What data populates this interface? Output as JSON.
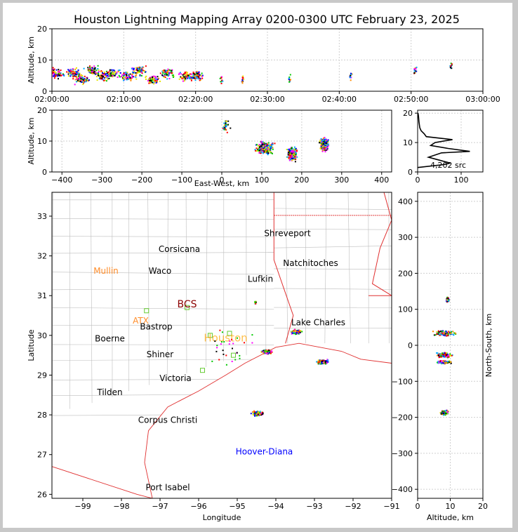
{
  "chart_data": [
    {
      "panel": "altitude-time",
      "type": "scatter",
      "title": "Houston Lightning Mapping Array 0200-0300 UTC February 23, 2025",
      "xlabel": "",
      "ylabel": "Altitude, km",
      "xlim": [
        "02:00:00",
        "03:00:00"
      ],
      "ylim": [
        0,
        20
      ],
      "x_ticks": [
        "02:00:00",
        "02:10:00",
        "02:20:00",
        "02:30:00",
        "02:40:00",
        "02:50:00",
        "03:00:00"
      ],
      "y_ticks": [
        0,
        10,
        20
      ],
      "grid": true,
      "clusters": [
        {
          "x": "02:00:30",
          "y": 6
        },
        {
          "x": "02:03:00",
          "y": 6
        },
        {
          "x": "02:04:00",
          "y": 4
        },
        {
          "x": "02:05:30",
          "y": 7
        },
        {
          "x": "02:07:00",
          "y": 5
        },
        {
          "x": "02:08:30",
          "y": 6
        },
        {
          "x": "02:10:30",
          "y": 5
        },
        {
          "x": "02:12:00",
          "y": 7
        },
        {
          "x": "02:14:00",
          "y": 4
        },
        {
          "x": "02:16:00",
          "y": 6
        },
        {
          "x": "02:18:30",
          "y": 5
        },
        {
          "x": "02:20:00",
          "y": 5
        },
        {
          "x": "02:23:30",
          "y": 4
        },
        {
          "x": "02:26:30",
          "y": 4
        },
        {
          "x": "02:33:00",
          "y": 4
        },
        {
          "x": "02:41:30",
          "y": 5
        },
        {
          "x": "02:50:30",
          "y": 7
        },
        {
          "x": "02:55:30",
          "y": 8
        }
      ]
    },
    {
      "panel": "altitude-east-west",
      "type": "scatter",
      "xlabel": "East-West, km",
      "ylabel": "Altitude, km",
      "xlim": [
        -425,
        425
      ],
      "ylim": [
        0,
        20
      ],
      "x_ticks": [
        -400,
        -300,
        -200,
        -100,
        0,
        100,
        200,
        300,
        400
      ],
      "y_ticks": [
        0,
        10,
        20
      ],
      "grid": true,
      "clusters": [
        {
          "x": 105,
          "y": 8,
          "spread": 18
        },
        {
          "x": 175,
          "y": 6,
          "spread": 10
        },
        {
          "x": 255,
          "y": 9,
          "spread": 10
        },
        {
          "x": 10,
          "y": 15,
          "spread": 8
        }
      ]
    },
    {
      "panel": "altitude-histogram",
      "type": "line",
      "xlabel": "",
      "ylabel": "",
      "xlim": [
        0,
        150
      ],
      "ylim": [
        0,
        21
      ],
      "x_ticks": [
        0,
        100
      ],
      "y_ticks": [
        0,
        10,
        20
      ],
      "annotation": "4,202 src",
      "x": [
        0,
        60,
        75,
        50,
        25,
        55,
        120,
        70,
        30,
        40,
        80,
        20,
        15,
        8,
        5,
        3,
        2,
        1
      ],
      "y": [
        1.5,
        2.5,
        3,
        4,
        5,
        6.5,
        7,
        8,
        9,
        10,
        11,
        12,
        13,
        14,
        15,
        17,
        19,
        20
      ]
    },
    {
      "panel": "plan-view-map",
      "type": "scatter",
      "xlabel": "Longitude",
      "ylabel": "Latitude",
      "xlim": [
        -99.8,
        -91
      ],
      "ylim": [
        25.9,
        33.6
      ],
      "x_ticks": [
        -99,
        -98,
        -97,
        -96,
        -95,
        -94,
        -93,
        -92,
        -91
      ],
      "y_ticks": [
        26,
        27,
        28,
        29,
        30,
        31,
        32,
        33
      ],
      "cities": [
        {
          "name": "Shreveport",
          "lon": -93.7,
          "lat": 32.5,
          "color": "#000000"
        },
        {
          "name": "Corsicana",
          "lon": -96.5,
          "lat": 32.1,
          "color": "#000000"
        },
        {
          "name": "Natchitoches",
          "lon": -93.1,
          "lat": 31.75,
          "color": "#000000"
        },
        {
          "name": "Mullin",
          "lon": -98.4,
          "lat": 31.55,
          "color": "#ff8c28"
        },
        {
          "name": "Waco",
          "lon": -97.0,
          "lat": 31.55,
          "color": "#000000"
        },
        {
          "name": "Lufkin",
          "lon": -94.4,
          "lat": 31.35,
          "color": "#000000"
        },
        {
          "name": "BCS",
          "lon": -96.3,
          "lat": 30.7,
          "color": "#8b0000"
        },
        {
          "name": "ATX",
          "lon": -97.5,
          "lat": 30.3,
          "color": "#ff8c28"
        },
        {
          "name": "Bastrop",
          "lon": -97.1,
          "lat": 30.15,
          "color": "#000000"
        },
        {
          "name": "Lake Charles",
          "lon": -92.9,
          "lat": 30.25,
          "color": "#000000"
        },
        {
          "name": "Boerne",
          "lon": -98.3,
          "lat": 29.85,
          "color": "#000000"
        },
        {
          "name": "Houston",
          "lon": -95.3,
          "lat": 29.85,
          "color": "#ffa500"
        },
        {
          "name": "Shiner",
          "lon": -97.0,
          "lat": 29.45,
          "color": "#000000"
        },
        {
          "name": "Victoria",
          "lon": -96.6,
          "lat": 28.85,
          "color": "#000000"
        },
        {
          "name": "Tilden",
          "lon": -98.3,
          "lat": 28.5,
          "color": "#000000"
        },
        {
          "name": "Corpus Christi",
          "lon": -96.8,
          "lat": 27.8,
          "color": "#000000"
        },
        {
          "name": "Hoover-Diana",
          "lon": -94.3,
          "lat": 27.0,
          "color": "#0000ff"
        },
        {
          "name": "Port Isabel",
          "lon": -96.8,
          "lat": 26.1,
          "color": "#000000"
        }
      ],
      "clusters": [
        {
          "lon": -93.5,
          "lat": 30.1
        },
        {
          "lon": -94.25,
          "lat": 29.6
        },
        {
          "lon": -92.8,
          "lat": 29.35
        },
        {
          "lon": -94.5,
          "lat": 28.05
        },
        {
          "lon": -94.55,
          "lat": 30.85
        }
      ]
    },
    {
      "panel": "north-south-altitude",
      "type": "scatter",
      "xlabel": "Altitude, km",
      "ylabel": "North-South, km",
      "xlim": [
        0,
        20
      ],
      "ylim": [
        -425,
        425
      ],
      "x_ticks": [
        0,
        10,
        20
      ],
      "y_ticks": [
        -400,
        -300,
        -200,
        -100,
        0,
        100,
        200,
        300,
        400
      ],
      "grid": true,
      "clusters": [
        {
          "x": 8,
          "y": 35,
          "spread_x": 8,
          "spread_y": 10
        },
        {
          "x": 8,
          "y": -25,
          "spread_x": 5,
          "spread_y": 10
        },
        {
          "x": 8,
          "y": -45,
          "spread_x": 5,
          "spread_y": 6
        },
        {
          "x": 8,
          "y": -185,
          "spread_x": 3,
          "spread_y": 8
        },
        {
          "x": 9,
          "y": 128,
          "spread_x": 1,
          "spread_y": 8
        }
      ]
    }
  ]
}
